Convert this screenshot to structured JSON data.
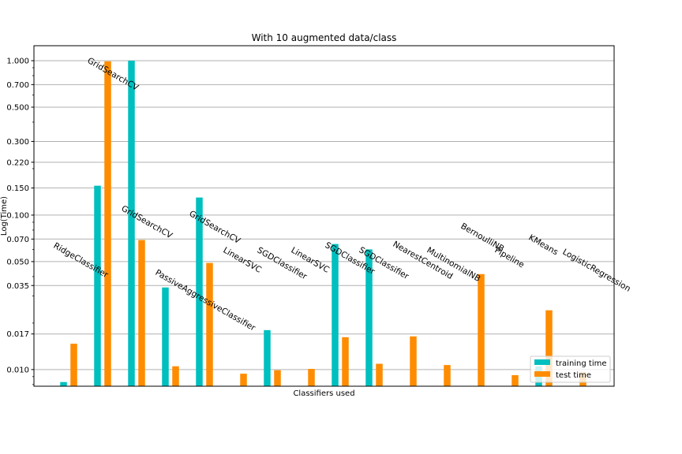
{
  "chart_data": {
    "type": "bar",
    "title": "With 10 augmented data/class",
    "xlabel": "Classifiers used",
    "ylabel": "Log(Time)",
    "yscale": "log",
    "ylim": [
      0.0078,
      1.25
    ],
    "yticks": [
      {
        "value": 1.0,
        "label": "1.000"
      },
      {
        "value": 0.7,
        "label": "0.700"
      },
      {
        "value": 0.5,
        "label": "0.500"
      },
      {
        "value": 0.3,
        "label": "0.300"
      },
      {
        "value": 0.22,
        "label": "0.220"
      },
      {
        "value": 0.15,
        "label": "0.150"
      },
      {
        "value": 0.1,
        "label": "0.100"
      },
      {
        "value": 0.07,
        "label": "0.070"
      },
      {
        "value": 0.05,
        "label": "0.050"
      },
      {
        "value": 0.035,
        "label": "0.035"
      },
      {
        "value": 0.017,
        "label": "0.017"
      },
      {
        "value": 0.01,
        "label": "0.010"
      }
    ],
    "grid": "horizontal",
    "legend_position": "lower-right",
    "categories": [
      "RidgeClassifier",
      "GridSearchCV",
      "GridSearchCV",
      "PassiveAggressiveClassifier",
      "GridSearchCV",
      "LinearSVC",
      "SGDClassifier",
      "LinearSVC",
      "SGDClassifier",
      "SGDClassifier",
      "NearestCentroid",
      "MultinomialNB",
      "BernoulliNB",
      "Pipeline",
      "KMeans",
      "LogisticRegression"
    ],
    "category_label_values": [
      0.062,
      0.98,
      0.108,
      0.0415,
      0.1,
      0.058,
      0.058,
      0.058,
      0.0625,
      0.0582,
      0.0635,
      0.058,
      0.083,
      0.058,
      0.07,
      0.0565
    ],
    "series": [
      {
        "name": "training time",
        "color": "#00bfbf",
        "values": [
          0.0083,
          0.155,
          1.0,
          0.034,
          0.13,
          0.0072,
          0.018,
          0.0072,
          0.065,
          0.06,
          0.0072,
          0.0072,
          0.0072,
          0.0072,
          0.0105,
          0.0072
        ]
      },
      {
        "name": "test time",
        "color": "#ff8c00",
        "values": [
          0.0147,
          0.99,
          0.069,
          0.0105,
          0.049,
          0.0094,
          0.0099,
          0.0101,
          0.0162,
          0.0109,
          0.0164,
          0.0107,
          0.0415,
          0.0092,
          0.0242,
          0.0096
        ]
      }
    ]
  }
}
